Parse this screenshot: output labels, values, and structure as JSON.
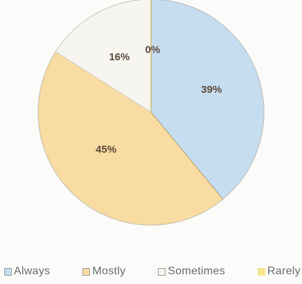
{
  "chart_data": {
    "type": "pie",
    "title": "",
    "start_angle_deg": 0,
    "direction": "clockwise",
    "legend_position": "bottom",
    "slices": [
      {
        "label": "Always",
        "value": 39,
        "data_label": "39%",
        "color": "#c6dcef",
        "edge": "#6f8fa8"
      },
      {
        "label": "Mostly",
        "value": 45,
        "data_label": "45%",
        "color": "#f8dca2",
        "edge": "#b8a070"
      },
      {
        "label": "Sometimes",
        "value": 16,
        "data_label": "16%",
        "color": "#f6f5f0",
        "edge": "#d2d0c6"
      },
      {
        "label": "Rarely",
        "value": 0,
        "data_label": "0%",
        "color": "#f6e58a",
        "edge": "#c9b54a"
      }
    ]
  },
  "legend": {
    "items": [
      {
        "label": "Always",
        "color": "#c6dcef"
      },
      {
        "label": "Mostly",
        "color": "#f8dca2"
      },
      {
        "label": "Sometimes",
        "color": "#f6f5f0"
      },
      {
        "label": "Rarely",
        "color": "#f6e58a"
      }
    ]
  }
}
